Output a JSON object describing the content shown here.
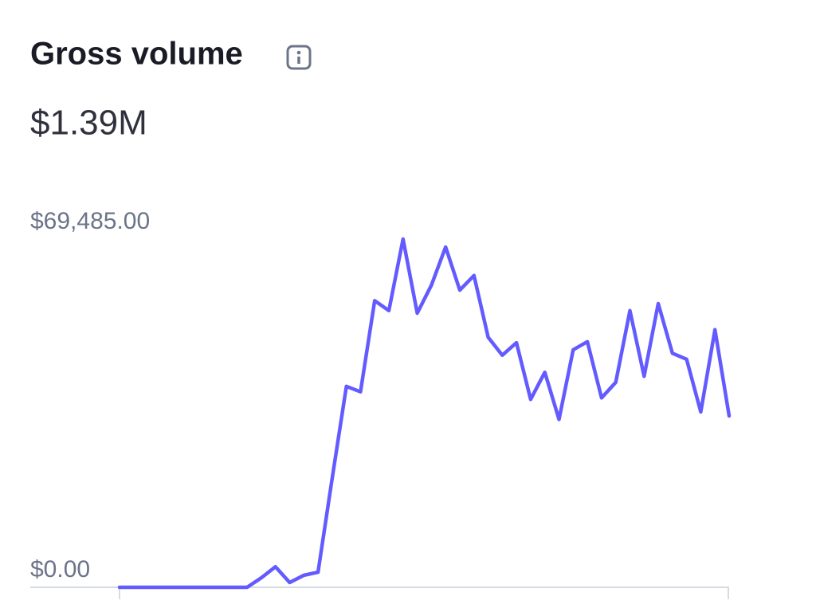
{
  "chart_data": {
    "type": "line",
    "title": "Gross volume",
    "subtitle": "$1.39M",
    "values": [
      0,
      0,
      0,
      0,
      0,
      0,
      0,
      0,
      0,
      0,
      1900,
      4100,
      950,
      2400,
      3000,
      21800,
      40100,
      39000,
      57200,
      55200,
      69485,
      54700,
      60300,
      67900,
      59300,
      62200,
      49900,
      46300,
      48800,
      37500,
      42900,
      33500,
      47400,
      49000,
      37800,
      40900,
      55200,
      42100,
      56600,
      46700,
      45500,
      35000,
      51400,
      34200
    ],
    "color": "#635bff",
    "ylim": [
      0,
      69485
    ],
    "yticks": [
      {
        "value": 0,
        "label": "$0.00"
      },
      {
        "value": 69485,
        "label": "$69,485.00"
      }
    ]
  }
}
